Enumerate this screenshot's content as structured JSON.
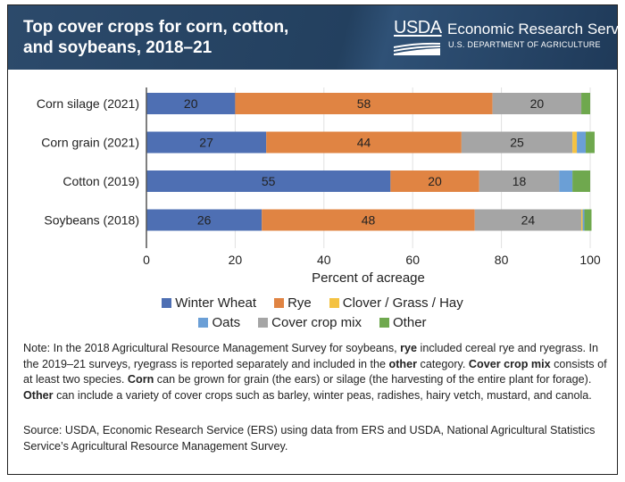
{
  "header": {
    "title": "Top cover crops for corn, cotton, and soybeans, 2018–21",
    "logo_word": "USDA",
    "agency": "Economic Research Service",
    "department": "U.S. DEPARTMENT OF AGRICULTURE"
  },
  "colors": {
    "Winter Wheat": "#4e6fb3",
    "Rye": "#e08443",
    "Clover / Grass / Hay": "#f4c242",
    "Oats": "#6b9fd6",
    "Cover crop mix": "#a5a5a5",
    "Other": "#6fa84e"
  },
  "chart_data": {
    "type": "bar",
    "orientation": "horizontal",
    "stacked": true,
    "title": "Top cover crops for corn, cotton, and soybeans, 2018–21",
    "xlabel": "Percent of acreage",
    "ylabel": "",
    "xlim": [
      0,
      100
    ],
    "xticks": [
      0,
      20,
      40,
      60,
      80,
      100
    ],
    "grid": true,
    "legend_position": "bottom",
    "categories": [
      "Corn silage (2021)",
      "Corn grain (2021)",
      "Cotton (2019)",
      "Soybeans (2018)"
    ],
    "series": [
      {
        "name": "Winter Wheat",
        "values": [
          20,
          27,
          55,
          26
        ],
        "labels": [
          "20",
          "27",
          "55",
          "26"
        ]
      },
      {
        "name": "Rye",
        "values": [
          58,
          44,
          20,
          48
        ],
        "labels": [
          "58",
          "44",
          "20",
          "48"
        ]
      },
      {
        "name": "Cover crop mix",
        "values": [
          20,
          25,
          18,
          24
        ],
        "labels": [
          "20",
          "25",
          "18",
          "24"
        ]
      },
      {
        "name": "Clover / Grass / Hay",
        "values": [
          0,
          1,
          0,
          0.3
        ],
        "labels": [
          "",
          "",
          "",
          ""
        ]
      },
      {
        "name": "Oats",
        "values": [
          0,
          2,
          3,
          0.4
        ],
        "labels": [
          "",
          "",
          "",
          ""
        ]
      },
      {
        "name": "Other",
        "values": [
          2,
          2,
          4,
          1.6
        ],
        "labels": [
          "",
          "",
          "",
          ""
        ]
      }
    ]
  },
  "legend": {
    "row1": [
      "Winter Wheat",
      "Rye",
      "Clover / Grass / Hay"
    ],
    "row2": [
      "Oats",
      "Cover crop mix",
      "Other"
    ]
  },
  "note": {
    "parts": [
      {
        "t": "Note: In the 2018 Agricultural Resource Management Survey for soybeans, ",
        "b": false
      },
      {
        "t": "rye",
        "b": true
      },
      {
        "t": " included cereal rye and ryegrass. In the 2019–21 surveys, ryegrass is reported separately and included in the ",
        "b": false
      },
      {
        "t": "other",
        "b": true
      },
      {
        "t": " category. ",
        "b": false
      },
      {
        "t": "Cover crop mix",
        "b": true
      },
      {
        "t": " consists of at least two species. ",
        "b": false
      },
      {
        "t": "Corn",
        "b": true
      },
      {
        "t": " can be grown for grain (the ears) or silage (the harvesting of the entire plant for forage). ",
        "b": false
      },
      {
        "t": "Other",
        "b": true
      },
      {
        "t": " can include a variety of cover crops such as barley, winter peas, radishes, hairy vetch, mustard, and canola.",
        "b": false
      }
    ]
  },
  "source": "Source: USDA, Economic Research Service (ERS) using data from ERS and USDA, National Agricultural Statistics Service’s Agricultural Resource Management Survey."
}
